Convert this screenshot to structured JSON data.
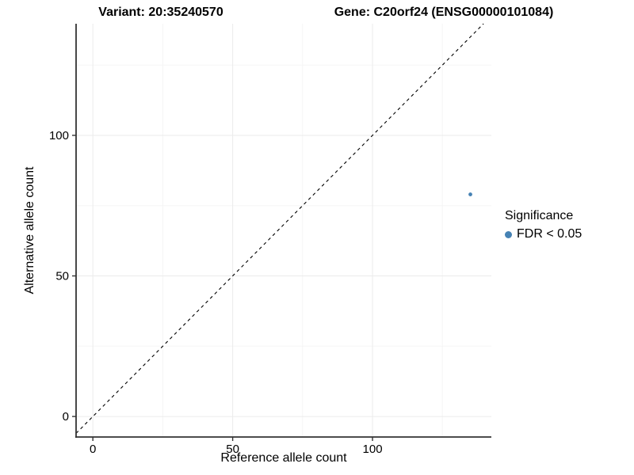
{
  "chart_data": {
    "type": "scatter",
    "title_variant": "Variant: 20:35240570",
    "title_gene": "Gene: C20orf24 (ENSG00000101084)",
    "xlabel": "Reference allele count",
    "ylabel": "Alternative allele count",
    "xlim": [
      -6,
      142.5
    ],
    "ylim": [
      -7.3,
      139.7
    ],
    "x_major_ticks": [
      0,
      50,
      100
    ],
    "x_minor_ticks": [
      25,
      75,
      125
    ],
    "y_major_ticks": [
      0,
      50,
      100
    ],
    "y_minor_ticks": [
      25,
      75,
      125
    ],
    "grid": true,
    "identity_line": {
      "slope": 1,
      "intercept": 0,
      "style": "dashed",
      "color": "#000000"
    },
    "series": [
      {
        "name": "FDR < 0.05",
        "color": "#4682B4",
        "points": [
          {
            "x": 135,
            "y": 79
          }
        ]
      }
    ],
    "legend": {
      "title": "Significance",
      "position": "right",
      "entries": [
        {
          "label": "FDR < 0.05",
          "color": "#4682B4"
        }
      ]
    },
    "colors": {
      "background": "#ffffff",
      "grid_major": "#ebebeb",
      "grid_minor": "#f5f5f5",
      "axis_line": "#333333",
      "tick_text": "#000000"
    }
  }
}
